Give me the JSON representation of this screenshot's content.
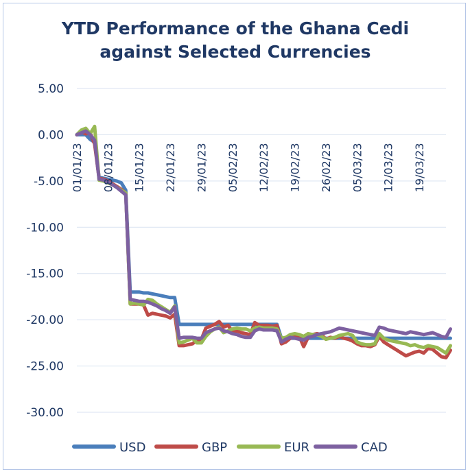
{
  "chart_data": {
    "type": "line",
    "title": [
      "YTD Performance of the Ghana Cedi",
      "against Selected Currencies"
    ],
    "xlabel": "",
    "ylabel": "",
    "ylim": [
      -30,
      5
    ],
    "yticks": [
      5,
      0,
      -5,
      -10,
      -15,
      -20,
      -25,
      -30
    ],
    "ytick_labels": [
      "5.00",
      "0.00",
      "-5.00",
      "-10.00",
      "-15.00",
      "-20.00",
      "-25.00",
      "-30.00"
    ],
    "xlim": [
      0,
      83
    ],
    "xticks": [
      0,
      7,
      14,
      21,
      28,
      35,
      42,
      49,
      56,
      63,
      70,
      77
    ],
    "xtick_labels": [
      "01/01/23",
      "08/01/23",
      "15/01/23",
      "22/01/23",
      "29/01/23",
      "05/02/23",
      "12/02/23",
      "19/02/23",
      "26/02/23",
      "05/03/23",
      "12/03/23",
      "19/03/23"
    ],
    "grid": true,
    "legend_position": "bottom",
    "series": [
      {
        "name": "USD",
        "color": "#4a7ebb",
        "x": [
          0,
          1,
          2,
          3,
          4,
          5,
          6,
          7,
          8,
          9,
          10,
          11,
          12,
          13,
          14,
          15,
          16,
          17,
          18,
          19,
          20,
          21,
          22,
          23,
          24,
          25,
          26,
          27,
          28,
          31,
          34,
          40,
          45,
          46,
          47,
          50,
          54,
          58,
          62,
          66,
          70,
          75,
          80,
          84
        ],
        "y": [
          0,
          0,
          0,
          -0.5,
          -0.8,
          -4.6,
          -4.7,
          -4.8,
          -4.9,
          -5.0,
          -5.2,
          -6.0,
          -17.0,
          -17.0,
          -17.0,
          -17.1,
          -17.1,
          -17.2,
          -17.3,
          -17.4,
          -17.5,
          -17.6,
          -17.6,
          -20.5,
          -20.5,
          -20.5,
          -20.5,
          -20.5,
          -20.5,
          -20.5,
          -20.5,
          -20.5,
          -20.5,
          -22.0,
          -22.0,
          -22.0,
          -22.0,
          -22.0,
          -22.0,
          -22.0,
          -22.0,
          -22.0,
          -22.0,
          -22.0
        ]
      },
      {
        "name": "GBP",
        "color": "#be4b48",
        "x": [
          0,
          1,
          2,
          3,
          4,
          5,
          6,
          7,
          8,
          9,
          10,
          11,
          12,
          13,
          14,
          15,
          16,
          17,
          18,
          19,
          20,
          21,
          22,
          23,
          24,
          25,
          26,
          27,
          28,
          29,
          30,
          31,
          32,
          33,
          34,
          35,
          36,
          37,
          38,
          39,
          40,
          41,
          42,
          43,
          44,
          45,
          46,
          47,
          48,
          49,
          50,
          51,
          52,
          53,
          54,
          55,
          56,
          57,
          58,
          59,
          60,
          61,
          62,
          63,
          64,
          65,
          66,
          67,
          68,
          69,
          70,
          71,
          72,
          73,
          74,
          75,
          76,
          77,
          78,
          79,
          80,
          81,
          82,
          83,
          84
        ],
        "y": [
          0,
          0.3,
          0.1,
          0.2,
          -1.0,
          -4.7,
          -4.8,
          -5.0,
          -5.3,
          -5.6,
          -5.9,
          -6.3,
          -18.3,
          -18.3,
          -18.3,
          -18.4,
          -19.5,
          -19.3,
          -19.4,
          -19.5,
          -19.6,
          -19.8,
          -19.4,
          -22.8,
          -22.8,
          -22.7,
          -22.6,
          -22.2,
          -22.1,
          -20.9,
          -20.7,
          -20.5,
          -20.2,
          -20.8,
          -20.6,
          -21.3,
          -21.2,
          -21.4,
          -21.5,
          -21.6,
          -20.3,
          -20.6,
          -20.6,
          -20.6,
          -20.7,
          -20.6,
          -22.6,
          -22.4,
          -22.0,
          -21.7,
          -21.8,
          -22.9,
          -21.9,
          -21.6,
          -21.5,
          -21.6,
          -22.1,
          -21.9,
          -22.0,
          -21.8,
          -22.0,
          -22.1,
          -22.3,
          -22.6,
          -22.8,
          -22.8,
          -22.9,
          -22.7,
          -21.8,
          -22.4,
          -22.7,
          -23.0,
          -23.3,
          -23.6,
          -23.9,
          -23.7,
          -23.5,
          -23.4,
          -23.6,
          -23.1,
          -23.2,
          -23.6,
          -24.0,
          -24.1,
          -23.3
        ]
      },
      {
        "name": "EUR",
        "color": "#98b954",
        "x": [
          0,
          1,
          2,
          3,
          4,
          5,
          6,
          7,
          8,
          9,
          10,
          11,
          12,
          13,
          14,
          15,
          16,
          17,
          18,
          19,
          20,
          21,
          22,
          23,
          24,
          25,
          26,
          27,
          28,
          29,
          30,
          31,
          32,
          33,
          34,
          35,
          36,
          37,
          38,
          39,
          40,
          41,
          42,
          43,
          44,
          45,
          46,
          47,
          48,
          49,
          50,
          51,
          52,
          53,
          54,
          55,
          56,
          57,
          58,
          59,
          60,
          61,
          62,
          63,
          64,
          65,
          66,
          67,
          68,
          69,
          70,
          71,
          72,
          73,
          74,
          75,
          76,
          77,
          78,
          79,
          80,
          81,
          82,
          83,
          84
        ],
        "y": [
          0,
          0.5,
          0.7,
          0.1,
          0.9,
          -4.9,
          -5.0,
          -5.2,
          -5.4,
          -5.7,
          -6.0,
          -6.3,
          -18.3,
          -18.2,
          -18.3,
          -18.4,
          -17.8,
          -17.9,
          -18.3,
          -18.6,
          -18.9,
          -19.2,
          -18.5,
          -22.5,
          -22.4,
          -22.2,
          -22.0,
          -22.5,
          -22.5,
          -21.8,
          -21.3,
          -21.0,
          -20.8,
          -21.4,
          -21.2,
          -21.0,
          -20.9,
          -21.0,
          -21.0,
          -21.2,
          -20.9,
          -20.8,
          -20.9,
          -20.9,
          -20.9,
          -21.0,
          -22.0,
          -21.9,
          -21.6,
          -21.5,
          -21.6,
          -21.8,
          -21.5,
          -21.6,
          -21.6,
          -21.8,
          -22.1,
          -22.0,
          -21.9,
          -21.7,
          -21.6,
          -21.5,
          -21.7,
          -22.4,
          -22.6,
          -22.7,
          -22.7,
          -22.6,
          -21.5,
          -22.0,
          -22.2,
          -22.3,
          -22.4,
          -22.5,
          -22.6,
          -22.8,
          -22.7,
          -22.9,
          -23.0,
          -22.8,
          -22.9,
          -23.0,
          -23.3,
          -23.6,
          -22.8
        ]
      },
      {
        "name": "CAD",
        "color": "#7d60a0",
        "x": [
          0,
          1,
          2,
          3,
          4,
          5,
          6,
          7,
          8,
          9,
          10,
          11,
          12,
          13,
          14,
          15,
          16,
          17,
          18,
          19,
          20,
          21,
          22,
          23,
          24,
          25,
          26,
          27,
          28,
          29,
          30,
          31,
          32,
          33,
          34,
          35,
          36,
          37,
          38,
          39,
          40,
          41,
          42,
          43,
          44,
          45,
          46,
          47,
          48,
          49,
          50,
          51,
          52,
          53,
          54,
          55,
          56,
          57,
          58,
          59,
          60,
          61,
          62,
          63,
          64,
          65,
          66,
          67,
          68,
          69,
          70,
          71,
          72,
          73,
          74,
          75,
          76,
          77,
          78,
          79,
          80,
          81,
          82,
          83,
          84
        ],
        "y": [
          0,
          0.2,
          0.4,
          0,
          -0.6,
          -4.8,
          -4.9,
          -5.1,
          -5.4,
          -5.7,
          -6.1,
          -6.5,
          -17.8,
          -17.9,
          -18.0,
          -18.0,
          -18.1,
          -18.3,
          -18.5,
          -18.8,
          -19.0,
          -19.3,
          -18.6,
          -22.0,
          -21.9,
          -21.9,
          -21.9,
          -22.0,
          -22.0,
          -21.4,
          -21.2,
          -21.0,
          -20.9,
          -21.2,
          -21.3,
          -21.5,
          -21.6,
          -21.8,
          -21.9,
          -21.9,
          -21.2,
          -21.0,
          -21.1,
          -21.1,
          -21.1,
          -21.2,
          -22.4,
          -22.1,
          -21.9,
          -22.0,
          -22.1,
          -22.2,
          -21.9,
          -21.8,
          -21.6,
          -21.5,
          -21.4,
          -21.3,
          -21.1,
          -20.9,
          -21.0,
          -21.1,
          -21.2,
          -21.3,
          -21.4,
          -21.5,
          -21.6,
          -21.7,
          -20.8,
          -20.9,
          -21.1,
          -21.2,
          -21.3,
          -21.4,
          -21.5,
          -21.3,
          -21.4,
          -21.5,
          -21.6,
          -21.5,
          -21.4,
          -21.6,
          -21.8,
          -21.9,
          -21.0
        ]
      }
    ]
  }
}
